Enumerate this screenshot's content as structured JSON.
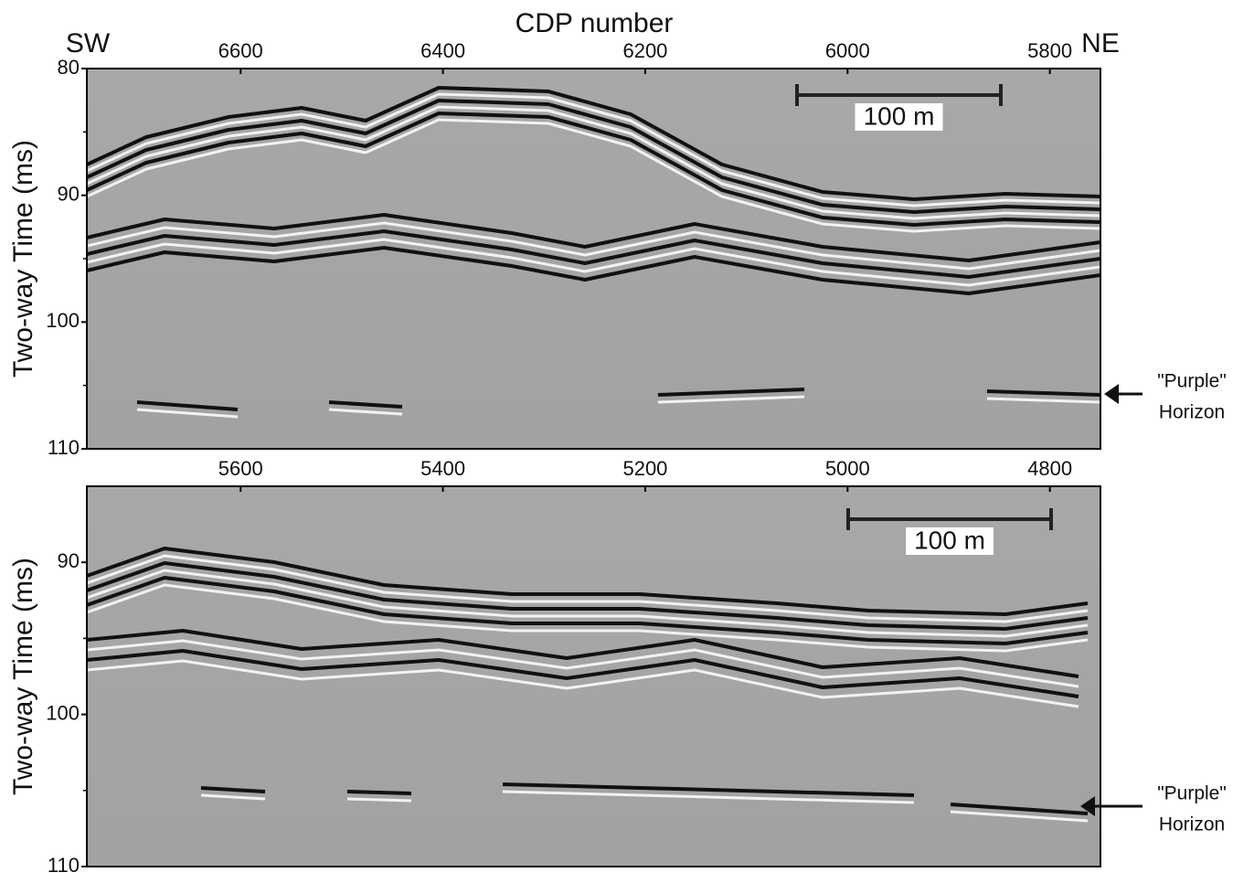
{
  "chart_data": [
    {
      "type": "seismic",
      "x_label": "CDP number",
      "y_label": "Two-way Time (ms)",
      "left_label": "SW",
      "right_label": "NE",
      "xlim": [
        6752,
        5750
      ],
      "xticks": [
        6600,
        6400,
        6200,
        6000,
        5800
      ],
      "ylim": [
        80,
        110
      ],
      "yticks": [
        80,
        90,
        100,
        110
      ],
      "yminorticks": [
        85,
        95,
        105
      ],
      "scale_bar_label": "100 m",
      "annotation": [
        "\"Purple\"",
        "Horizon"
      ]
    },
    {
      "type": "seismic",
      "y_label": "Two-way Time (ms)",
      "xlim": [
        5752,
        4750
      ],
      "xticks": [
        5600,
        5400,
        5200,
        5000,
        4800
      ],
      "ylim": [
        85,
        110
      ],
      "yticks": [
        90,
        100,
        110
      ],
      "yminorticks": [
        95,
        105
      ],
      "scale_bar_label": "100 m",
      "annotation": [
        "\"Purple\"",
        "Horizon"
      ]
    }
  ]
}
